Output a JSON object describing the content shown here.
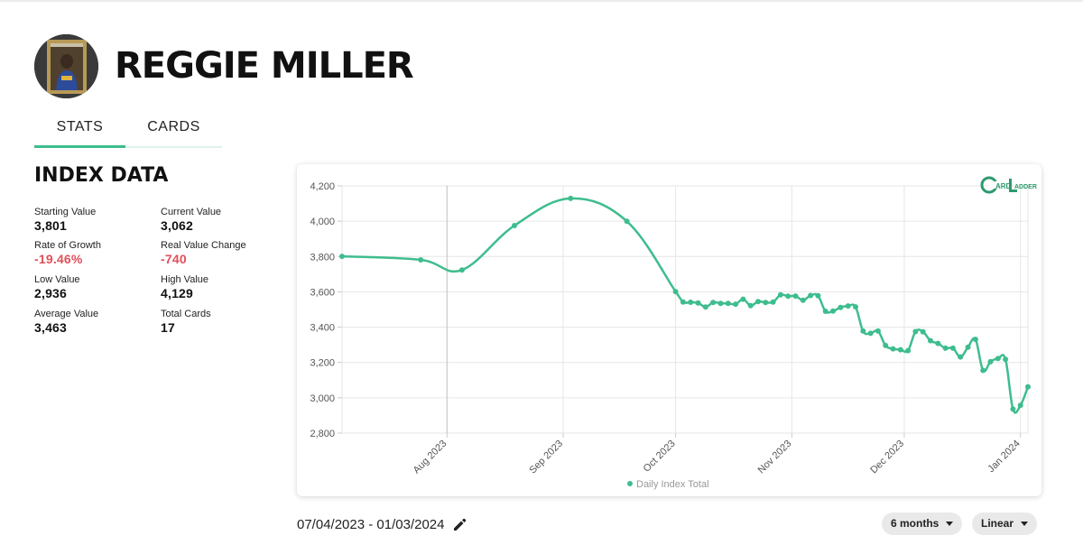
{
  "player": {
    "name": "REGGIE MILLER"
  },
  "tabs": [
    {
      "label": "STATS"
    },
    {
      "label": "CARDS"
    }
  ],
  "index": {
    "title": "INDEX DATA",
    "stats": [
      {
        "label": "Starting Value",
        "value": "3,801"
      },
      {
        "label": "Current Value",
        "value": "3,062"
      },
      {
        "label": "Rate of Growth",
        "value": "-19.46%"
      },
      {
        "label": "Real Value Change",
        "value": "-740"
      },
      {
        "label": "Low Value",
        "value": "2,936"
      },
      {
        "label": "High Value",
        "value": "4,129"
      },
      {
        "label": "Average Value",
        "value": "3,463"
      },
      {
        "label": "Total Cards",
        "value": "17"
      }
    ]
  },
  "controls": {
    "date_range": "07/04/2023 - 01/03/2024",
    "range_label": "6 months",
    "scale_label": "Linear"
  },
  "colors": {
    "accent": "#3ebd8e",
    "negative": "#e0505a"
  },
  "icons": {
    "edit": "pencil-icon",
    "dropdown": "caret-down-icon"
  },
  "chart_data": {
    "type": "line",
    "legend": "Daily Index Total",
    "legend_position": "bottom",
    "grid": true,
    "ylim": [
      2800,
      4200
    ],
    "y_ticks": [
      "2,800",
      "3,000",
      "3,200",
      "3,400",
      "3,600",
      "3,800",
      "4,000",
      "4,200"
    ],
    "x_ticks": [
      {
        "date": "2023-08-01",
        "label": "Aug 2023"
      },
      {
        "date": "2023-09-01",
        "label": "Sep 2023"
      },
      {
        "date": "2023-10-01",
        "label": "Oct 2023"
      },
      {
        "date": "2023-11-01",
        "label": "Nov 2023"
      },
      {
        "date": "2023-12-01",
        "label": "Dec 2023"
      },
      {
        "date": "2024-01-01",
        "label": "Jan 2024"
      }
    ],
    "x_range": [
      "2023-07-04",
      "2024-01-03"
    ],
    "series": [
      {
        "name": "Daily Index Total",
        "points": [
          [
            "2023-07-04",
            3801
          ],
          [
            "2023-07-25",
            3781
          ],
          [
            "2023-08-05",
            3724
          ],
          [
            "2023-08-19",
            3975
          ],
          [
            "2023-09-03",
            4129
          ],
          [
            "2023-09-18",
            3999
          ],
          [
            "2023-10-01",
            3601
          ],
          [
            "2023-10-03",
            3542
          ],
          [
            "2023-10-05",
            3541
          ],
          [
            "2023-10-07",
            3537
          ],
          [
            "2023-10-09",
            3514
          ],
          [
            "2023-10-11",
            3540
          ],
          [
            "2023-10-13",
            3535
          ],
          [
            "2023-10-15",
            3534
          ],
          [
            "2023-10-17",
            3530
          ],
          [
            "2023-10-19",
            3558
          ],
          [
            "2023-10-21",
            3522
          ],
          [
            "2023-10-23",
            3545
          ],
          [
            "2023-10-25",
            3540
          ],
          [
            "2023-10-27",
            3542
          ],
          [
            "2023-10-29",
            3583
          ],
          [
            "2023-10-31",
            3575
          ],
          [
            "2023-11-02",
            3576
          ],
          [
            "2023-11-04",
            3552
          ],
          [
            "2023-11-06",
            3579
          ],
          [
            "2023-11-08",
            3578
          ],
          [
            "2023-11-10",
            3490
          ],
          [
            "2023-11-12",
            3491
          ],
          [
            "2023-11-14",
            3512
          ],
          [
            "2023-11-16",
            3520
          ],
          [
            "2023-11-18",
            3515
          ],
          [
            "2023-11-20",
            3378
          ],
          [
            "2023-11-22",
            3365
          ],
          [
            "2023-11-24",
            3378
          ],
          [
            "2023-11-26",
            3296
          ],
          [
            "2023-11-28",
            3277
          ],
          [
            "2023-11-30",
            3272
          ],
          [
            "2023-12-02",
            3267
          ],
          [
            "2023-12-04",
            3375
          ],
          [
            "2023-12-06",
            3374
          ],
          [
            "2023-12-08",
            3323
          ],
          [
            "2023-12-10",
            3308
          ],
          [
            "2023-12-12",
            3281
          ],
          [
            "2023-12-14",
            3281
          ],
          [
            "2023-12-16",
            3231
          ],
          [
            "2023-12-18",
            3287
          ],
          [
            "2023-12-20",
            3331
          ],
          [
            "2023-12-22",
            3155
          ],
          [
            "2023-12-24",
            3204
          ],
          [
            "2023-12-26",
            3222
          ],
          [
            "2023-12-28",
            3218
          ],
          [
            "2023-12-30",
            2936
          ],
          [
            "2024-01-01",
            2957
          ],
          [
            "2024-01-03",
            3062
          ]
        ]
      }
    ]
  }
}
